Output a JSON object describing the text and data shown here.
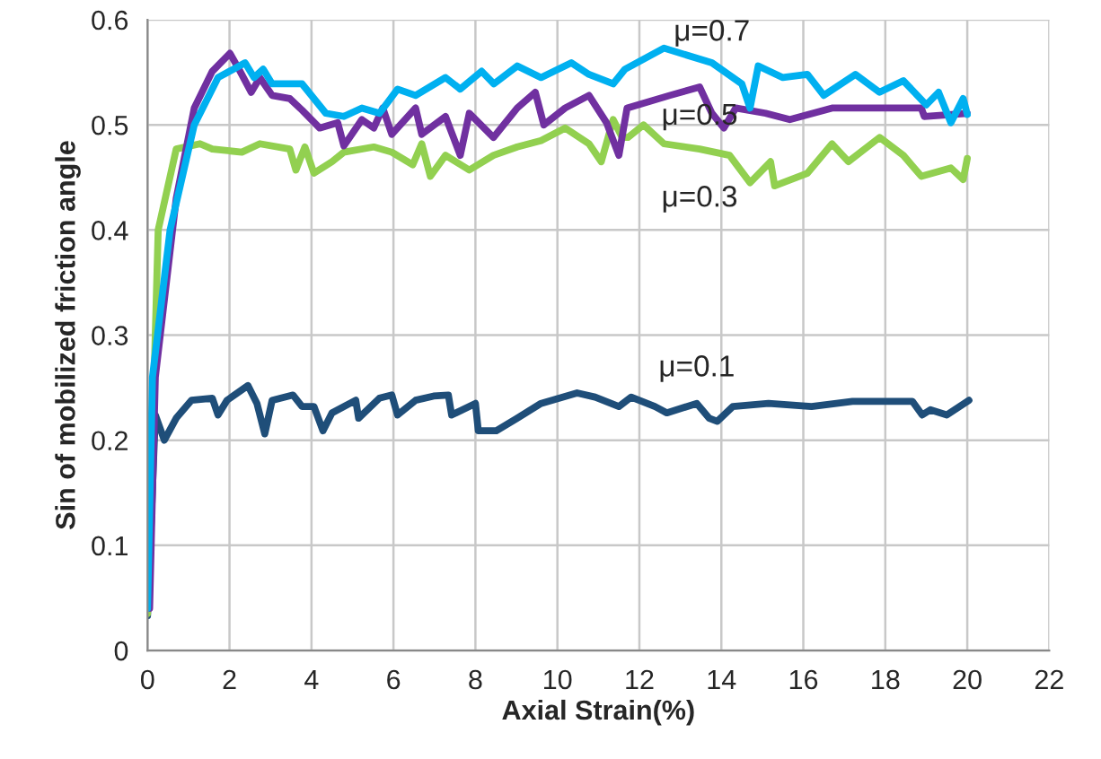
{
  "chart_data": {
    "type": "line",
    "xlabel": "Axial Strain(%)",
    "ylabel": "Sin of mobilized friction angle",
    "xlim": [
      0,
      22
    ],
    "xticks": [
      0,
      2,
      4,
      6,
      8,
      10,
      12,
      14,
      16,
      18,
      20,
      22
    ],
    "ylim": [
      0,
      0.6
    ],
    "yticks": [
      0,
      0.1,
      0.2,
      0.3,
      0.4,
      0.5,
      0.6
    ],
    "grid": true,
    "marker": "none",
    "line_style": "solid",
    "series": [
      {
        "name": "μ=0.1",
        "color": "#1f4e79",
        "x": [
          0,
          0.19,
          0.41,
          0.7,
          1.07,
          1.58,
          1.72,
          1.94,
          2.45,
          2.67,
          2.86,
          3.04,
          3.55,
          3.77,
          4.06,
          4.28,
          4.5,
          5.08,
          5.15,
          5.66,
          5.96,
          6.1,
          6.54,
          6.98,
          7.34,
          7.42,
          8.0,
          8.07,
          8.51,
          9.02,
          9.6,
          10.48,
          10.92,
          11.5,
          11.8,
          12.38,
          12.67,
          13.4,
          13.7,
          13.9,
          14.28,
          15.15,
          16.2,
          17.2,
          18.66,
          18.9,
          19.1,
          19.5,
          20.04
        ],
        "values": [
          0.033,
          0.224,
          0.2,
          0.221,
          0.238,
          0.24,
          0.224,
          0.238,
          0.252,
          0.235,
          0.206,
          0.238,
          0.243,
          0.232,
          0.232,
          0.209,
          0.226,
          0.238,
          0.221,
          0.24,
          0.243,
          0.224,
          0.238,
          0.242,
          0.243,
          0.224,
          0.235,
          0.209,
          0.209,
          0.221,
          0.235,
          0.245,
          0.241,
          0.232,
          0.241,
          0.232,
          0.226,
          0.235,
          0.221,
          0.218,
          0.232,
          0.235,
          0.232,
          0.237,
          0.237,
          0.224,
          0.229,
          0.224,
          0.238
        ]
      },
      {
        "name": "μ=0.3",
        "color": "#92d050",
        "x": [
          0,
          0.26,
          0.7,
          1.28,
          1.58,
          2.3,
          2.74,
          3.47,
          3.62,
          3.84,
          4.06,
          4.5,
          4.79,
          5.52,
          5.96,
          6.47,
          6.69,
          6.9,
          7.27,
          7.85,
          8.44,
          9.02,
          9.6,
          10.19,
          10.77,
          11.07,
          11.36,
          11.58,
          11.72,
          12.1,
          12.6,
          13.47,
          14.2,
          14.7,
          15.2,
          15.3,
          16.1,
          16.7,
          17.1,
          17.86,
          18.44,
          18.88,
          19.6,
          19.9,
          20.0
        ],
        "values": [
          0.035,
          0.4,
          0.477,
          0.482,
          0.477,
          0.474,
          0.482,
          0.477,
          0.457,
          0.479,
          0.454,
          0.465,
          0.474,
          0.479,
          0.474,
          0.462,
          0.482,
          0.451,
          0.471,
          0.457,
          0.471,
          0.479,
          0.485,
          0.497,
          0.482,
          0.465,
          0.505,
          0.488,
          0.488,
          0.5,
          0.482,
          0.477,
          0.471,
          0.445,
          0.465,
          0.442,
          0.454,
          0.482,
          0.465,
          0.488,
          0.471,
          0.451,
          0.459,
          0.448,
          0.468
        ]
      },
      {
        "name": "μ=0.5",
        "color": "#7030a0",
        "x": [
          0.05,
          0.19,
          0.7,
          1.14,
          1.58,
          2.01,
          2.23,
          2.53,
          2.74,
          3.04,
          3.47,
          3.77,
          4.2,
          4.64,
          4.79,
          5.23,
          5.52,
          5.74,
          5.96,
          6.54,
          6.69,
          7.27,
          7.63,
          7.85,
          8.44,
          9.02,
          9.46,
          9.67,
          10.19,
          10.77,
          11.2,
          11.5,
          11.7,
          12.74,
          13.47,
          13.77,
          14.06,
          14.35,
          15.08,
          15.67,
          16.7,
          18.88,
          18.95,
          20.0
        ],
        "values": [
          0.04,
          0.26,
          0.43,
          0.516,
          0.551,
          0.568,
          0.553,
          0.531,
          0.545,
          0.528,
          0.525,
          0.514,
          0.497,
          0.502,
          0.48,
          0.505,
          0.497,
          0.516,
          0.491,
          0.516,
          0.491,
          0.508,
          0.471,
          0.511,
          0.488,
          0.516,
          0.531,
          0.5,
          0.516,
          0.528,
          0.502,
          0.471,
          0.516,
          0.528,
          0.536,
          0.511,
          0.497,
          0.516,
          0.511,
          0.505,
          0.516,
          0.516,
          0.508,
          0.511
        ]
      },
      {
        "name": "μ=0.7",
        "color": "#00b0f0",
        "x": [
          0,
          0.12,
          0.55,
          1.14,
          1.72,
          2.38,
          2.6,
          2.82,
          3.04,
          3.77,
          4.35,
          4.79,
          5.23,
          5.66,
          6.1,
          6.54,
          7.27,
          7.63,
          8.15,
          8.45,
          9.02,
          9.6,
          10.34,
          10.77,
          11.36,
          11.65,
          12.6,
          13.77,
          14.5,
          14.7,
          14.9,
          15.5,
          16.1,
          16.5,
          17.27,
          17.86,
          18.44,
          19.0,
          19.3,
          19.6,
          19.9,
          20.0
        ],
        "values": [
          0.04,
          0.26,
          0.4,
          0.5,
          0.545,
          0.559,
          0.545,
          0.553,
          0.539,
          0.539,
          0.511,
          0.508,
          0.516,
          0.511,
          0.534,
          0.528,
          0.545,
          0.534,
          0.551,
          0.539,
          0.556,
          0.545,
          0.559,
          0.548,
          0.539,
          0.553,
          0.573,
          0.559,
          0.539,
          0.516,
          0.556,
          0.545,
          0.548,
          0.528,
          0.548,
          0.531,
          0.542,
          0.519,
          0.531,
          0.502,
          0.525,
          0.51
        ]
      }
    ]
  }
}
